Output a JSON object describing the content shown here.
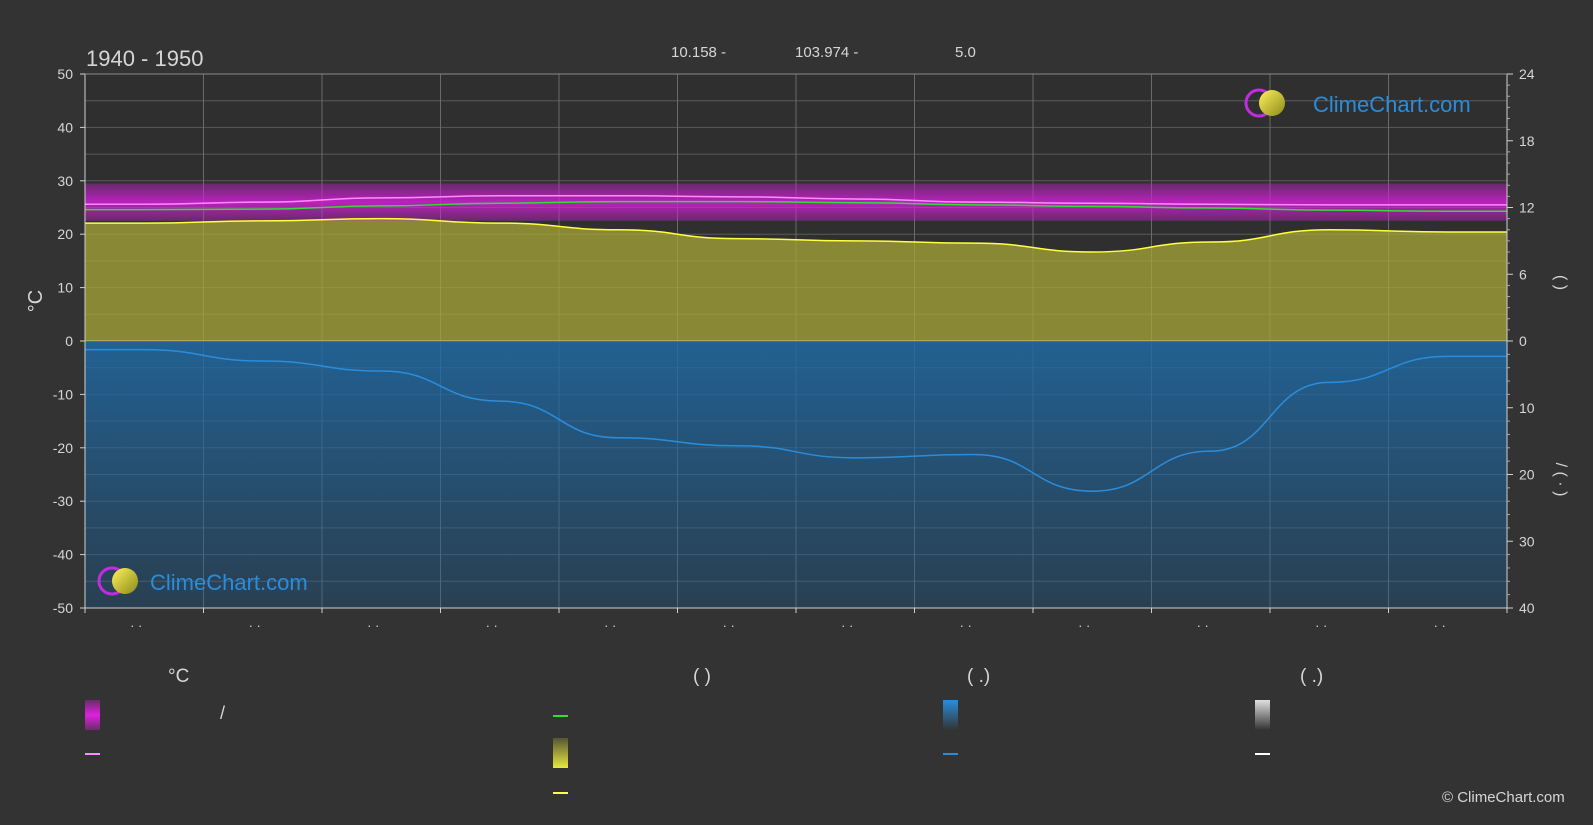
{
  "page": {
    "title": "1940 - 1950",
    "coords": [
      "10.158 -",
      "103.974 -",
      "5.0"
    ],
    "brand": "ClimeChart.com",
    "copyright": "© ClimeChart.com"
  },
  "chart_data": {
    "type": "area",
    "ylabel_left": "°C",
    "ylabel_right_top": "(    )",
    "ylabel_right_bottom": "/    (  ·  )",
    "left_axis": {
      "min": -50,
      "max": 50,
      "ticks": [
        50,
        40,
        30,
        20,
        10,
        0,
        -10,
        -20,
        -30,
        -40,
        -50
      ]
    },
    "right_axis_top": {
      "min": 0,
      "max": 24,
      "ticks": [
        24,
        18,
        12,
        6,
        0
      ]
    },
    "right_axis_bottom": {
      "min": 0,
      "max": 40,
      "ticks": [
        0,
        10,
        20,
        30,
        40
      ]
    },
    "months": 12,
    "month_labels": [
      "· ·",
      "· ·",
      "· ·",
      "· ·",
      "· ·",
      "· ·",
      "· ·",
      "· ·",
      "· ·",
      "· ·",
      "· ·",
      "· ·"
    ],
    "grid": true,
    "series": [
      {
        "key": "daily_max_line",
        "color": "#ff8cff",
        "axis": "left",
        "values": [
          25.6,
          26.0,
          26.8,
          27.2,
          27.2,
          27.0,
          26.6,
          26.0,
          25.8,
          25.6,
          25.5,
          25.5
        ]
      },
      {
        "key": "daily_mean_line",
        "color": "#33dd33",
        "axis": "left",
        "values": [
          24.6,
          24.7,
          25.3,
          25.8,
          26.1,
          26.1,
          25.9,
          25.5,
          25.2,
          24.9,
          24.5,
          24.3
        ]
      },
      {
        "key": "sunshine_line",
        "color": "#ffff44",
        "axis": "right_top",
        "values": [
          10.6,
          10.8,
          11.0,
          10.6,
          10.0,
          9.2,
          9.0,
          8.8,
          8.0,
          8.9,
          10.0,
          9.8
        ]
      },
      {
        "key": "precip_line",
        "color": "#2a8ddc",
        "axis": "right_bottom",
        "values": [
          1.3,
          3.0,
          4.5,
          9.0,
          14.5,
          15.7,
          17.5,
          17.0,
          22.5,
          16.5,
          6.2,
          2.3
        ]
      }
    ],
    "bands": {
      "temp_range": {
        "color": "#d21fd6",
        "low": 22.5,
        "high": 29.5
      },
      "sunshine_area": {
        "color": "#a8a838",
        "axis": "right_top"
      },
      "precip_area": {
        "color": "#1f5f92",
        "axis": "right_bottom"
      }
    }
  },
  "legend": {
    "headers": [
      "°C",
      "(          )",
      "(    .)",
      "(    .)"
    ],
    "temp_slash": "/",
    "colors": {
      "temp_band": "#e020e0",
      "temp_line": "#ff8cff",
      "mean_line": "#33dd33",
      "sun_band": "#e8e840",
      "sun_line": "#ffff44",
      "rain_band": "#2a8ddc",
      "rain_line": "#2a8ddc",
      "snow_band": "#e0e0e0",
      "snow_line": "#ffffff"
    }
  }
}
